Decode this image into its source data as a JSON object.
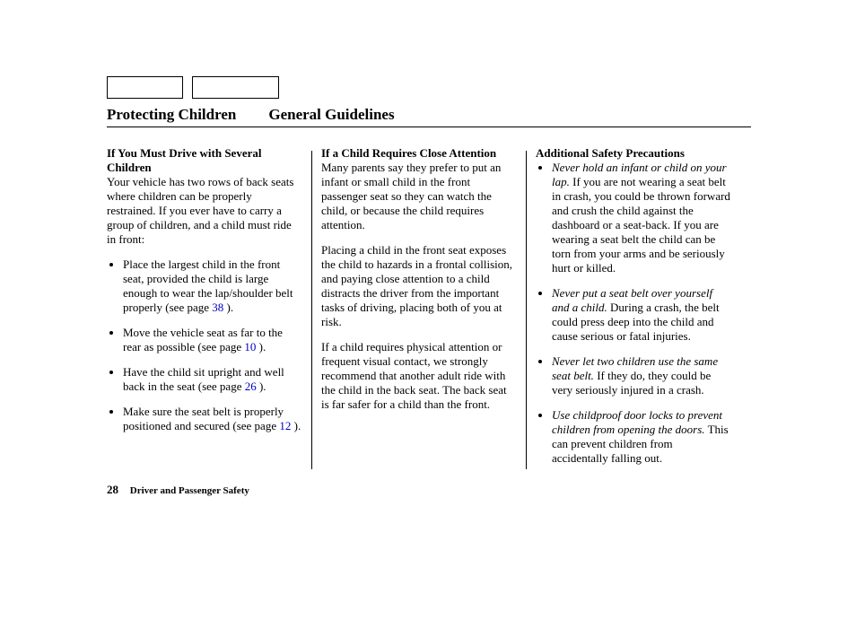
{
  "header": {
    "title_left": "Protecting Children",
    "title_right": "General Guidelines"
  },
  "columns": {
    "c1": {
      "heading": "If You Must Drive with Several Children",
      "intro": "Your vehicle has two rows of back seats where children can be properly restrained. If you ever have to carry a group of children, and a child must ride in front:",
      "bullets": [
        {
          "pre": "Place the largest child in the front seat, provided the child is large enough to wear the lap/shoulder belt properly (see page ",
          "ref": "38",
          "post": " )."
        },
        {
          "pre": "Move the vehicle seat as far to the rear as possible (see page ",
          "ref": "10",
          "post": " )."
        },
        {
          "pre": "Have the child sit upright and well back in the seat (see page ",
          "ref": "26",
          "post": " )."
        },
        {
          "pre": "Make sure the seat belt is properly positioned and secured (see page ",
          "ref": "12",
          "post": " )."
        }
      ]
    },
    "c2": {
      "heading": "If a Child Requires Close Attention",
      "p1": "Many parents say they prefer to put an infant or small child in the front passenger seat so they can watch the child, or because the child requires attention.",
      "p2": "Placing a child in the front seat exposes the child to hazards in a frontal collision, and paying close attention to a child distracts the driver from the important tasks of driving, placing both of you at risk.",
      "p3": "If a child requires physical attention or frequent visual contact, we strongly recommend that another adult ride with the child in the back seat. The back seat is far safer for a child than the front."
    },
    "c3": {
      "heading": "Additional Safety Precautions",
      "bullets": [
        {
          "lead": "Never hold an infant or child on your lap.",
          "rest": " If you are not wearing a seat belt in crash, you could be thrown forward and crush the child against the dashboard or a seat-back. If you are wearing a seat belt the child can be torn from your arms and be seriously hurt or killed."
        },
        {
          "lead": "Never put a seat belt over yourself and a child.",
          "rest": " During a crash, the belt could press deep into the child and cause serious or fatal injuries."
        },
        {
          "lead": "Never let two children use the same seat belt.",
          "rest": " If they do, they could be very seriously injured in a crash."
        },
        {
          "lead": "Use childproof door locks to prevent children from opening the doors.",
          "rest": " This can prevent children from accidentally falling out."
        }
      ]
    }
  },
  "footer": {
    "page_number": "28",
    "section": "Driver and Passenger Safety"
  }
}
